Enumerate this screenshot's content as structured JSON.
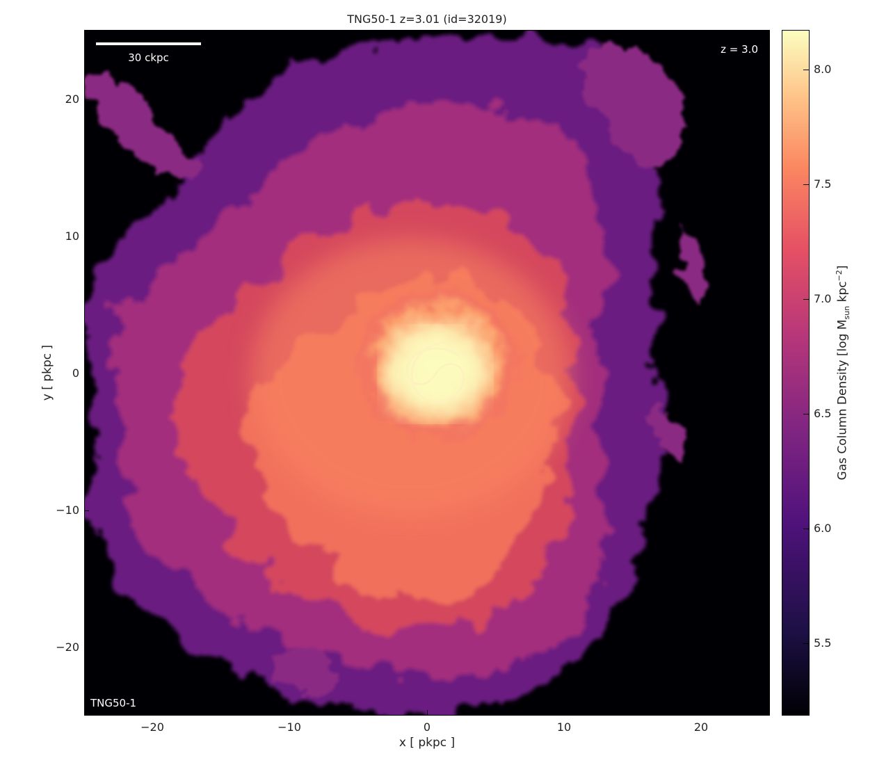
{
  "title": "TNG50-1 z=3.01 (id=32019)",
  "overlay": {
    "scale_bar_label": "30 ckpc",
    "redshift_label": "z = 3.0",
    "simulation_label": "TNG50-1"
  },
  "x_axis": {
    "label": "x [ pkpc ]",
    "ticks": [
      "−20",
      "−10",
      "0",
      "10",
      "20"
    ],
    "range": [
      -25,
      25
    ]
  },
  "y_axis": {
    "label": "y [ pkpc ]",
    "ticks": [
      "20",
      "10",
      "0",
      "−10",
      "−20"
    ],
    "range": [
      -25,
      25
    ]
  },
  "colorbar": {
    "label_main": "Gas Column Density [log M",
    "label_sub": "sun",
    "label_mid": " kpc",
    "label_sup": "−2",
    "label_end": "]",
    "ticks": [
      "8.0",
      "7.5",
      "7.0",
      "6.5",
      "6.0",
      "5.5"
    ],
    "range": [
      5.18,
      8.18
    ],
    "colormap": "magma"
  }
}
